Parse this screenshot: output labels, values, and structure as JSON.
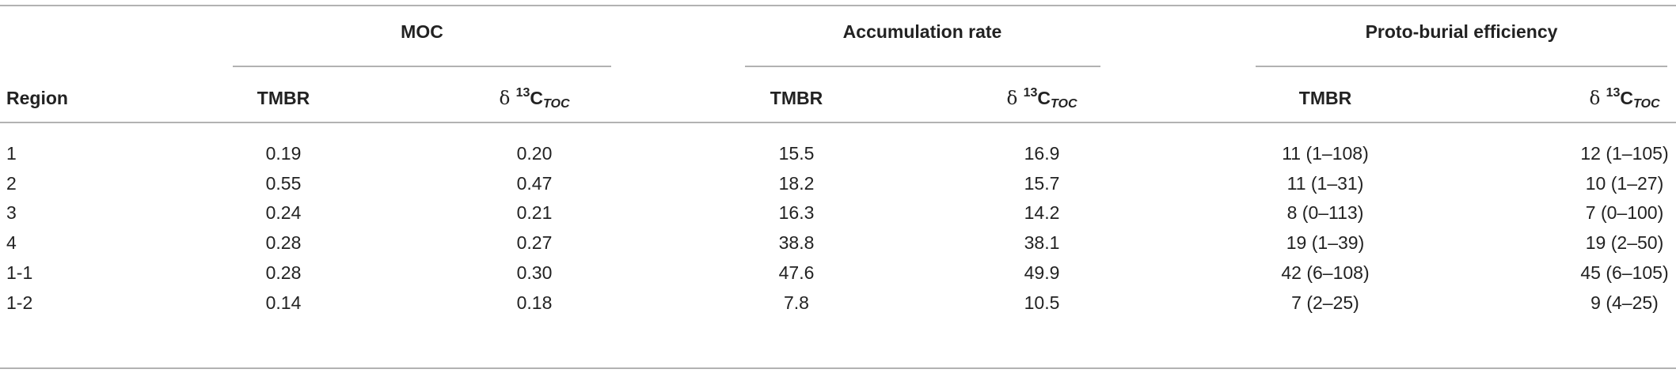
{
  "table": {
    "groups": [
      "MOC",
      "Accumulation rate",
      "Proto-burial efficiency"
    ],
    "header": [
      "Region",
      "TMBR",
      {
        "pre": "δ ",
        "sup": "13",
        "base": "C",
        "sub": "TOC"
      },
      "TMBR",
      {
        "pre": "δ ",
        "sup": "13",
        "base": "C",
        "sub": "TOC"
      },
      "TMBR",
      {
        "pre": "δ ",
        "sup": "13",
        "base": "C",
        "sub": "TOC"
      }
    ],
    "rows": [
      [
        "1",
        "0.19",
        "0.20",
        "15.5",
        "16.9",
        "11 (1–108)",
        "12 (1–105)"
      ],
      [
        "2",
        "0.55",
        "0.47",
        "18.2",
        "15.7",
        "11 (1–31)",
        "10 (1–27)"
      ],
      [
        "3",
        "0.24",
        "0.21",
        "16.3",
        "14.2",
        "8 (0–113)",
        "7 (0–100)"
      ],
      [
        "4",
        "0.28",
        "0.27",
        "38.8",
        "38.1",
        "19 (1–39)",
        "19 (2–50)"
      ],
      [
        "1-1",
        "0.28",
        "0.30",
        "47.6",
        "49.9",
        "42 (6–108)",
        "45 (6–105)"
      ],
      [
        "1-2",
        "0.14",
        "0.18",
        "7.8",
        "10.5",
        "7 (2–25)",
        "9 (4–25)"
      ]
    ]
  }
}
